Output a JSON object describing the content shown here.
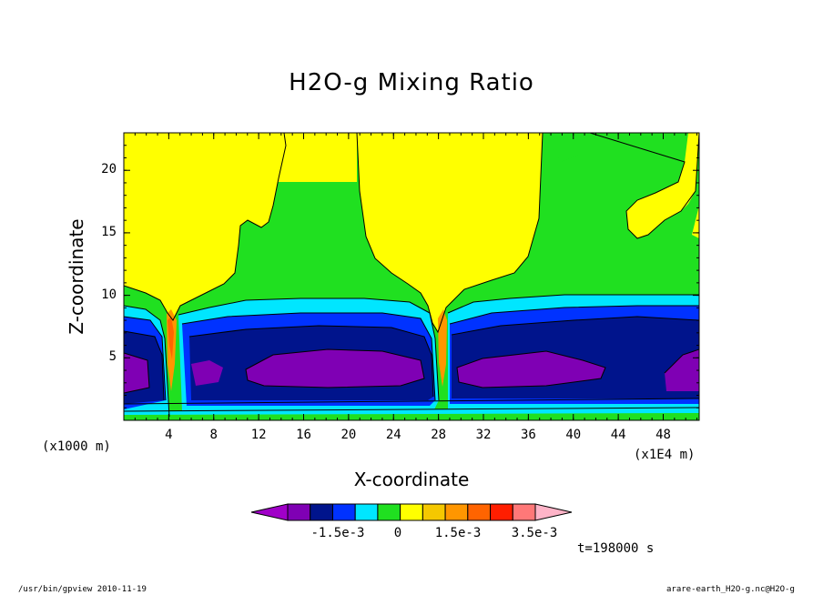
{
  "chart_data": {
    "type": "heatmap",
    "title": "H2O-g Mixing Ratio",
    "xlabel": "X-coordinate",
    "ylabel": "Z-coordinate",
    "x_unit_label": "(x1000 m)",
    "x_scale_label": "(x1E4 m)",
    "x_ticks": [
      4,
      8,
      12,
      16,
      20,
      24,
      28,
      32,
      36,
      40,
      44,
      48
    ],
    "y_ticks": [
      5,
      10,
      15,
      20
    ],
    "xlim": [
      0,
      51.2
    ],
    "ylim": [
      0,
      23
    ],
    "colorbar": {
      "colors": [
        "#a000c8",
        "#7f00b4",
        "#00148c",
        "#0032ff",
        "#00e6ff",
        "#20e020",
        "#ffff00",
        "#f5c800",
        "#ff9600",
        "#ff6400",
        "#ff1e00",
        "#ff7878",
        "#ffb4c8"
      ],
      "labels": [
        "-1.5e-3",
        "0",
        "1.5e-3",
        "3.5e-3"
      ]
    },
    "time_label": "t=198000 s"
  },
  "footer": {
    "left": "/usr/bin/gpview   2010-11-19",
    "right": "arare-earth_H2O-g.nc@H2O-g"
  }
}
